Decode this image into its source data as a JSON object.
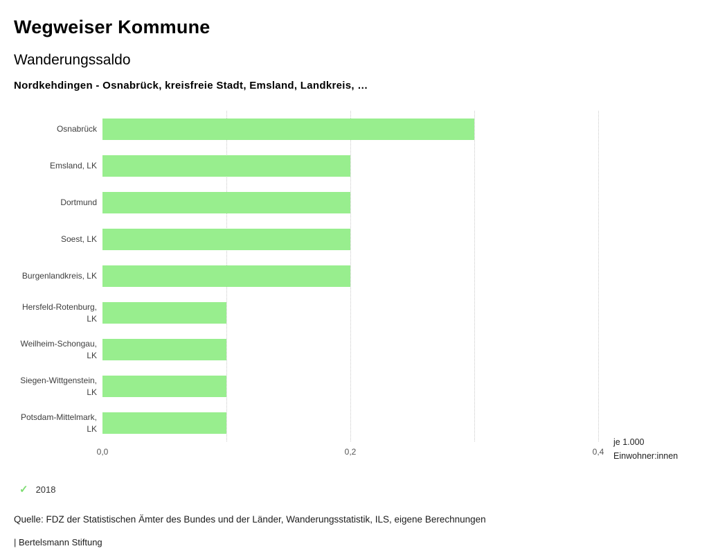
{
  "header": {
    "title": "Wegweiser Kommune",
    "subtitle": "Wanderungssaldo",
    "comparison": "Nordkehdingen - Osnabrück, kreisfreie Stadt, Emsland, Landkreis, …"
  },
  "chart_data": {
    "type": "bar",
    "orientation": "horizontal",
    "title": "Wanderungssaldo",
    "categories": [
      "Osnabrück",
      "Emsland, LK",
      "Dortmund",
      "Soest, LK",
      "Burgenlandkreis, LK",
      "Hersfeld-Rotenburg, LK",
      "Weilheim-Schongau, LK",
      "Siegen-Wittgenstein, LK",
      "Potsdam-Mittelmark, LK"
    ],
    "series": [
      {
        "name": "2018",
        "values": [
          0.3,
          0.2,
          0.2,
          0.2,
          0.2,
          0.1,
          0.1,
          0.1,
          0.1
        ]
      }
    ],
    "xlim": [
      0,
      0.4
    ],
    "x_ticks": [
      "0,0",
      "0,2",
      "0,4"
    ],
    "x_tick_values": [
      0,
      0.2,
      0.4
    ],
    "gridlines": [
      0.1,
      0.2,
      0.3,
      0.4
    ],
    "xlabel": "je 1.000 Einwohner:innen",
    "axis_note_line1": "je 1.000",
    "axis_note_line2": "Einwohner:innen",
    "bar_color": "#98ee8e",
    "grid_on": true,
    "legend_position": "bottom-left"
  },
  "legend": {
    "check": "✓",
    "check_color": "#7edd72",
    "year": "2018"
  },
  "footer": {
    "source": "Quelle: FDZ der Statistischen Ämter des Bundes und der Länder, Wanderungsstatistik, ILS, eigene Berechnungen",
    "brand": "| Bertelsmann Stiftung"
  }
}
